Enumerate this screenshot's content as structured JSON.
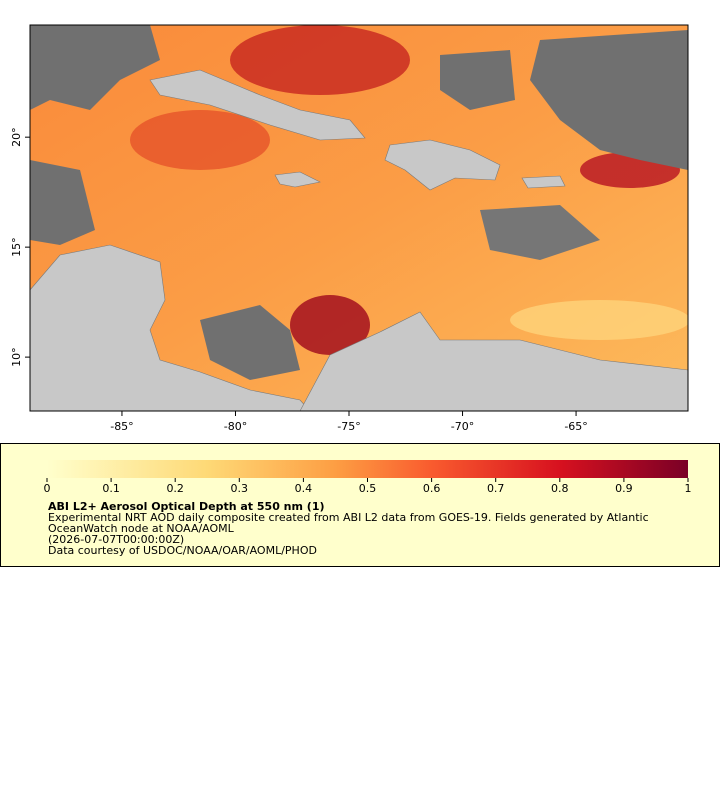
{
  "map": {
    "xlim": [
      -89.05,
      -60.07
    ],
    "ylim": [
      7.55,
      25.1
    ],
    "xticks": [
      {
        "value": -85,
        "label": "-85°"
      },
      {
        "value": -80,
        "label": "-80°"
      },
      {
        "value": -75,
        "label": "-75°"
      },
      {
        "value": -70,
        "label": "-70°"
      },
      {
        "value": -65,
        "label": "-65°"
      }
    ],
    "yticks": [
      {
        "value": 10,
        "label": "10°"
      },
      {
        "value": 15,
        "label": "15°"
      },
      {
        "value": 20,
        "label": "20°"
      }
    ]
  },
  "colorbar": {
    "lim": [
      0,
      1
    ],
    "ticks": [
      0,
      0.1,
      0.2,
      0.3,
      0.4,
      0.5,
      0.6,
      0.7,
      0.8,
      0.9,
      1
    ]
  },
  "legend": {
    "title": "ABI L2+ Aerosol Optical Depth at 550 nm (1)",
    "lines": [
      "Experimental NRT AOD daily composite created from ABI L2 data from GOES-19. Fields generated by Atlantic",
      "OceanWatch node at NOAA/AOML",
      "(2026-07-07T00:00:00Z)",
      "Data courtesy of USDOC/NOAA/OAR/AOML/PHOD"
    ]
  }
}
